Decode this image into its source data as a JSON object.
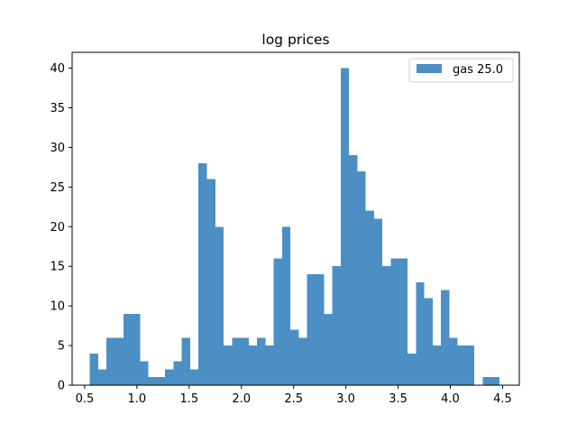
{
  "chart_data": {
    "type": "bar",
    "title": "log prices",
    "xlabel": "",
    "ylabel": "",
    "bin_width": 0.08,
    "bin_start": 0.55,
    "values": [
      4,
      2,
      6,
      6,
      9,
      9,
      3,
      1,
      1,
      2,
      3,
      6,
      2,
      28,
      26,
      20,
      5,
      6,
      6,
      5,
      6,
      5,
      16,
      20,
      7,
      6,
      14,
      14,
      9,
      15,
      40,
      29,
      27,
      22,
      21,
      15,
      16,
      16,
      4,
      13,
      11,
      5,
      12,
      6,
      5,
      5,
      0,
      1,
      1
    ],
    "xlim": [
      0.38,
      4.66
    ],
    "ylim": [
      0,
      42
    ],
    "xticks": [
      "0.5",
      "1.0",
      "1.5",
      "2.0",
      "2.5",
      "3.0",
      "3.5",
      "4.0",
      "4.5"
    ],
    "xtick_values": [
      0.5,
      1.0,
      1.5,
      2.0,
      2.5,
      3.0,
      3.5,
      4.0,
      4.5
    ],
    "yticks": [
      "0",
      "5",
      "10",
      "15",
      "20",
      "25",
      "30",
      "35",
      "40"
    ],
    "ytick_values": [
      0,
      5,
      10,
      15,
      20,
      25,
      30,
      35,
      40
    ],
    "series": [
      {
        "name": "gas 25.0",
        "color": "#4c8fc4"
      }
    ],
    "legend": "top-right",
    "grid": false
  }
}
